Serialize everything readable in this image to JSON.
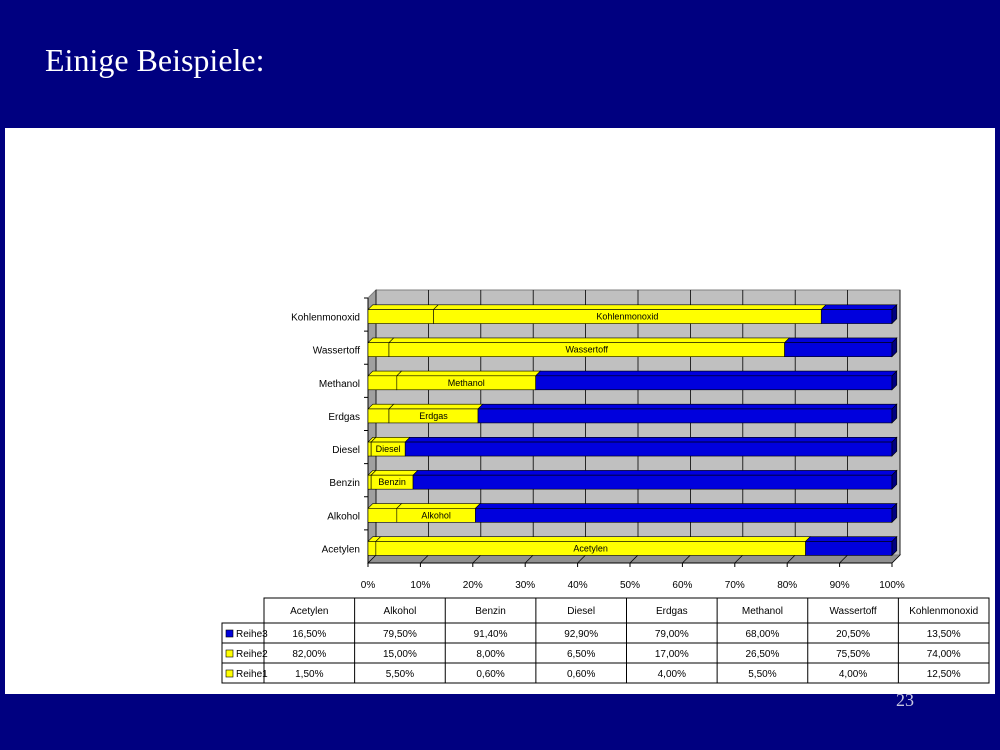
{
  "slide": {
    "title": "Einige Beispiele:",
    "page_number": "23"
  },
  "colors": {
    "background": "#000080",
    "panel": "#ffffff",
    "plot_area": "#c0c0c0",
    "Reihe1": "#ffff00",
    "Reihe2": "#ffff00",
    "Reihe3": "#0000dd"
  },
  "chart_data": {
    "type": "bar",
    "orientation": "horizontal",
    "stacked": "percent",
    "categories": [
      "Acetylen",
      "Alkohol",
      "Benzin",
      "Diesel",
      "Erdgas",
      "Methanol",
      "Wassertoff",
      "Kohlenmonoxid"
    ],
    "series": [
      {
        "name": "Reihe1",
        "values": [
          1.5,
          5.5,
          0.6,
          0.6,
          4.0,
          5.5,
          4.0,
          12.5
        ]
      },
      {
        "name": "Reihe2",
        "values": [
          82.0,
          15.0,
          8.0,
          6.5,
          17.0,
          26.5,
          75.5,
          74.0
        ]
      },
      {
        "name": "Reihe3",
        "values": [
          16.5,
          79.5,
          91.4,
          92.9,
          79.0,
          68.0,
          20.5,
          13.5
        ]
      }
    ],
    "bar_labels": [
      "Acetylen",
      "Alkohol",
      "Benzin",
      "Diesel",
      "Erdgas",
      "Methanol",
      "Wassertoff",
      "Kohlenmonoxid"
    ],
    "x_ticks": [
      "0%",
      "10%",
      "20%",
      "30%",
      "40%",
      "50%",
      "60%",
      "70%",
      "80%",
      "90%",
      "100%"
    ],
    "xlim": [
      0,
      100
    ],
    "grid": true,
    "data_table": {
      "headers": [
        "Acetylen",
        "Alkohol",
        "Benzin",
        "Diesel",
        "Erdgas",
        "Methanol",
        "Wassertoff",
        "Kohlenmonoxid"
      ],
      "rows": [
        {
          "name": "Reihe3",
          "cells": [
            "16,50%",
            "79,50%",
            "91,40%",
            "92,90%",
            "79,00%",
            "68,00%",
            "20,50%",
            "13,50%"
          ]
        },
        {
          "name": "Reihe2",
          "cells": [
            "82,00%",
            "15,00%",
            "8,00%",
            "6,50%",
            "17,00%",
            "26,50%",
            "75,50%",
            "74,00%"
          ]
        },
        {
          "name": "Reihe1",
          "cells": [
            "1,50%",
            "5,50%",
            "0,60%",
            "0,60%",
            "4,00%",
            "5,50%",
            "4,00%",
            "12,50%"
          ]
        }
      ]
    }
  }
}
